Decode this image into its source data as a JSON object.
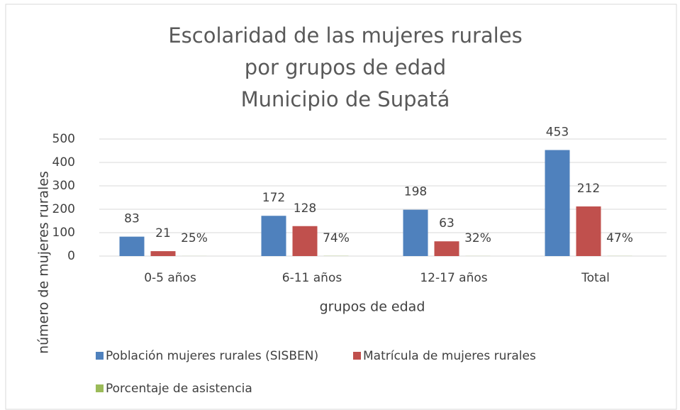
{
  "chart_data": {
    "type": "bar",
    "title": [
      "Escolaridad de las mujeres rurales",
      "por grupos de edad",
      "Municipio de Supatá"
    ],
    "x_label": "grupos de edad",
    "y_label": "número de mujeres  rurales",
    "categories": [
      "0-5 años",
      "6-11 años",
      "12-17 años",
      "Total"
    ],
    "series": [
      {
        "name": "Población mujeres rurales (SISBEN)",
        "color": "#4f81bd",
        "values": [
          83,
          172,
          198,
          453
        ]
      },
      {
        "name": "Matrícula de mujeres rurales",
        "color": "#c0504d",
        "values": [
          21,
          128,
          63,
          212
        ]
      },
      {
        "name": "Porcentaje de asistencia",
        "color": "#9bbb59",
        "values": [
          0.25,
          0.74,
          0.32,
          0.47
        ],
        "value_labels": [
          "25%",
          "74%",
          "32%",
          "47%"
        ]
      }
    ],
    "ylim": [
      0,
      500
    ],
    "yticks": [
      0,
      100,
      200,
      300,
      400,
      500
    ],
    "grid": true,
    "legend": "bottom"
  }
}
